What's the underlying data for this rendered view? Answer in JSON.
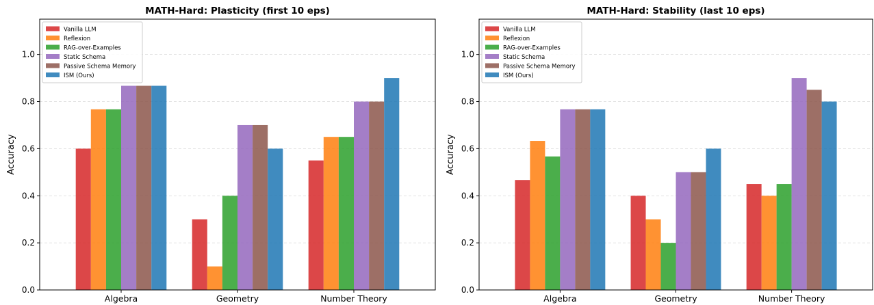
{
  "chart_data": [
    {
      "type": "bar",
      "title": "MATH-Hard: Plasticity (first 10 eps)",
      "xlabel": "",
      "ylabel": "Accuracy",
      "ylim": [
        0,
        1.15
      ],
      "yticks": [
        "0.0",
        "0.2",
        "0.4",
        "0.6",
        "0.8",
        "1.0"
      ],
      "grid": "y-dashed",
      "legend_position": "upper-left",
      "categories": [
        "Algebra",
        "Geometry",
        "Number Theory"
      ],
      "series": [
        {
          "name": "Vanilla LLM",
          "color": "#d62728",
          "values": [
            0.6,
            0.3,
            0.55
          ]
        },
        {
          "name": "Reflexion",
          "color": "#ff7f0e",
          "values": [
            0.767,
            0.1,
            0.65
          ]
        },
        {
          "name": "RAG-over-Examples",
          "color": "#2ca02c",
          "values": [
            0.767,
            0.4,
            0.65
          ]
        },
        {
          "name": "Static Schema",
          "color": "#9467bd",
          "values": [
            0.867,
            0.7,
            0.8
          ]
        },
        {
          "name": "Passive Schema Memory",
          "color": "#8c564b",
          "values": [
            0.867,
            0.7,
            0.8
          ]
        },
        {
          "name": "ISM (Ours)",
          "color": "#1f77b4",
          "values": [
            0.867,
            0.6,
            0.9
          ]
        }
      ]
    },
    {
      "type": "bar",
      "title": "MATH-Hard: Stability (last 10 eps)",
      "xlabel": "",
      "ylabel": "Accuracy",
      "ylim": [
        0,
        1.15
      ],
      "yticks": [
        "0.0",
        "0.2",
        "0.4",
        "0.6",
        "0.8",
        "1.0"
      ],
      "grid": "y-dashed",
      "legend_position": "upper-left",
      "categories": [
        "Algebra",
        "Geometry",
        "Number Theory"
      ],
      "series": [
        {
          "name": "Vanilla LLM",
          "color": "#d62728",
          "values": [
            0.467,
            0.4,
            0.45
          ]
        },
        {
          "name": "Reflexion",
          "color": "#ff7f0e",
          "values": [
            0.633,
            0.3,
            0.4
          ]
        },
        {
          "name": "RAG-over-Examples",
          "color": "#2ca02c",
          "values": [
            0.567,
            0.2,
            0.45
          ]
        },
        {
          "name": "Static Schema",
          "color": "#9467bd",
          "values": [
            0.767,
            0.5,
            0.9
          ]
        },
        {
          "name": "Passive Schema Memory",
          "color": "#8c564b",
          "values": [
            0.767,
            0.5,
            0.85
          ]
        },
        {
          "name": "ISM (Ours)",
          "color": "#1f77b4",
          "values": [
            0.767,
            0.6,
            0.8
          ]
        }
      ]
    }
  ]
}
